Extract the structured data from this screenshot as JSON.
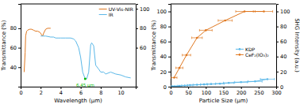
{
  "chart_data": [
    {
      "type": "line",
      "x_label": "Wavelength (μm)",
      "y_label": "Transmittance (%)",
      "series": [
        {
          "name": "UV-Vis-NIR",
          "color": "#E07820",
          "x": [
            0.35,
            0.45,
            0.5,
            0.6,
            0.7,
            0.9,
            1.1,
            1.3,
            1.5,
            1.7,
            1.9,
            2.0,
            2.05,
            2.1,
            2.15,
            2.2,
            2.3,
            2.5,
            2.7,
            3.0
          ],
          "values": [
            35,
            55,
            72,
            77,
            78,
            79,
            79,
            78,
            77,
            77,
            76,
            75,
            74,
            73,
            73,
            72,
            75,
            79,
            80,
            80
          ]
        },
        {
          "name": "IR",
          "color": "#5BB8E8",
          "x": [
            2.0,
            2.5,
            3.0,
            3.3,
            3.5,
            3.8,
            4.0,
            4.5,
            5.0,
            5.3,
            5.5,
            5.8,
            6.0,
            6.2,
            6.45,
            6.6,
            6.8,
            7.0,
            7.1,
            7.3,
            7.5,
            7.8,
            8.0,
            8.3,
            8.5,
            9.0,
            9.5,
            10.0,
            10.5,
            11.0
          ],
          "values": [
            72,
            72,
            71,
            71,
            70,
            70,
            70,
            70,
            70,
            69,
            67,
            60,
            50,
            35,
            28,
            28,
            35,
            63,
            65,
            62,
            42,
            38,
            35,
            35,
            33,
            35,
            33,
            32,
            30,
            29
          ]
        }
      ],
      "annotations": [
        {
          "text": "6.45 μm",
          "x": 6.45,
          "y": 23,
          "color": "#00bb00",
          "point": {
            "x": 6.45,
            "y": 28
          }
        }
      ],
      "xlim": [
        0,
        11.5
      ],
      "xticks": [
        0,
        2,
        4,
        6,
        8,
        10
      ],
      "ylim": [
        20,
        105
      ],
      "yticks": [
        40,
        60,
        80
      ],
      "y2lim": [
        20,
        105
      ],
      "y2ticks": [
        60,
        80,
        100
      ],
      "legend": "upper right"
    },
    {
      "type": "line",
      "x_label": "Particle Size (μm)",
      "y_label": "Transmittance (%)",
      "y2_label": "SHG Intensity (a.u.)",
      "series": [
        {
          "name": "KDP",
          "color": "#5BB8E8",
          "marker": "circle",
          "x": [
            5,
            15,
            25,
            40,
            55,
            75,
            95,
            115,
            140,
            165,
            200,
            240,
            275
          ],
          "values": [
            0.5,
            0.5,
            1,
            1.5,
            2,
            2.5,
            3,
            3.5,
            4,
            5,
            6,
            7,
            10
          ],
          "xerr": [
            5,
            5,
            5,
            8,
            8,
            10,
            10,
            12,
            12,
            15,
            18,
            20,
            20
          ]
        },
        {
          "name": "CeF₂(IO₃)₂",
          "color": "#E07820",
          "marker": "circle",
          "x": [
            10,
            25,
            45,
            75,
            100,
            155,
            210,
            265
          ],
          "values": [
            12,
            25,
            42,
            65,
            75,
            88,
            100,
            100
          ],
          "xerr": [
            8,
            10,
            12,
            15,
            18,
            20,
            25,
            25
          ]
        }
      ],
      "xlim": [
        0,
        300
      ],
      "xticks": [
        0,
        50,
        100,
        150,
        200,
        250,
        300
      ],
      "ylim": [
        0,
        110
      ],
      "yticks": [
        0,
        20,
        40,
        60,
        80,
        100
      ],
      "y2lim": [
        0,
        110
      ],
      "y2ticks": [
        0,
        20,
        40,
        60,
        80,
        100
      ],
      "legend": "center right"
    }
  ]
}
